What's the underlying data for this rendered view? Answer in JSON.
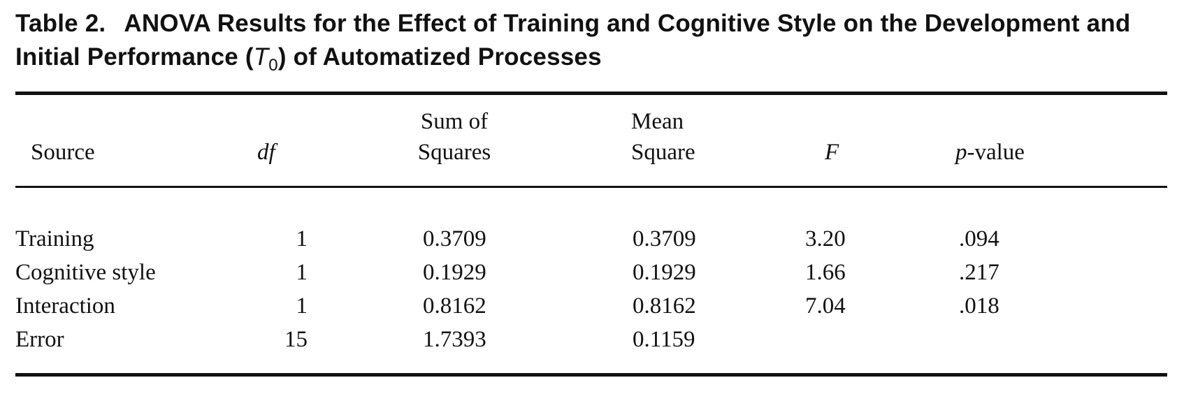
{
  "caption": {
    "label": "Table 2.",
    "title_before": "ANOVA Results for the Effect of Training and Cognitive Style on the Development and Initial Performance (",
    "symbol": "T",
    "subscript": "0",
    "title_after": ") of Automatized Processes"
  },
  "table": {
    "headers": {
      "source": "Source",
      "df": "df",
      "ss_line1": "Sum of",
      "ss_line2": "Squares",
      "ms_line1": "Mean",
      "ms_line2": "Square",
      "f": "F",
      "p_italic": "p",
      "p_rest": "-value"
    },
    "rows": [
      {
        "source": "Training",
        "df": "1",
        "ss": "0.3709",
        "ms": "0.3709",
        "f": "3.20",
        "p": ".094"
      },
      {
        "source": "Cognitive style",
        "df": "1",
        "ss": "0.1929",
        "ms": "0.1929",
        "f": "1.66",
        "p": ".217"
      },
      {
        "source": "Interaction",
        "df": "1",
        "ss": "0.8162",
        "ms": "0.8162",
        "f": "7.04",
        "p": ".018"
      },
      {
        "source": "Error",
        "df": "15",
        "ss": "1.7393",
        "ms": "0.1159",
        "f": "",
        "p": ""
      }
    ]
  }
}
